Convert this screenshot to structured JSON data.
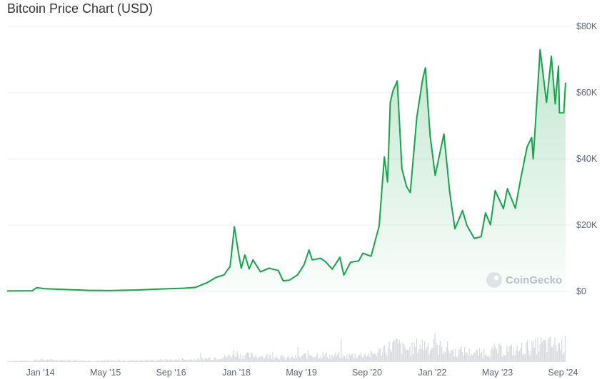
{
  "title": "Bitcoin Price Chart (USD)",
  "watermark": "CoinGecko",
  "colors": {
    "line": "#16a34a",
    "area_top": "#16a34a",
    "volume": "#d7dade",
    "grid": "#eceef1"
  },
  "chart_data": {
    "type": "area",
    "title": "Bitcoin Price Chart (USD)",
    "xlabel": "",
    "ylabel": "",
    "ylim": [
      0,
      80000
    ],
    "y_ticks": [
      {
        "value": 80000,
        "label": "$80K"
      },
      {
        "value": 60000,
        "label": "$60K"
      },
      {
        "value": 40000,
        "label": "$40K"
      },
      {
        "value": 20000,
        "label": "$20K"
      },
      {
        "value": 0,
        "label": "$0"
      }
    ],
    "x_ticks": [
      {
        "date": "2014-01-01",
        "label": "Jan '14"
      },
      {
        "date": "2015-05-01",
        "label": "May '15"
      },
      {
        "date": "2016-09-01",
        "label": "Sep '16"
      },
      {
        "date": "2018-01-01",
        "label": "Jan '18"
      },
      {
        "date": "2019-05-01",
        "label": "May '19"
      },
      {
        "date": "2020-09-01",
        "label": "Sep '20"
      },
      {
        "date": "2022-01-01",
        "label": "Jan '22"
      },
      {
        "date": "2023-05-01",
        "label": "May '23"
      },
      {
        "date": "2024-09-01",
        "label": "Sep '24"
      }
    ],
    "grid": true,
    "series": [
      {
        "x": [
          "2013-04-28",
          "2013-11-01",
          "2013-12-05",
          "2014-02-01",
          "2014-06-01",
          "2015-01-01",
          "2015-06-01",
          "2016-01-01",
          "2016-06-01",
          "2016-12-01",
          "2017-03-01",
          "2017-06-01",
          "2017-08-01",
          "2017-10-01",
          "2017-11-15",
          "2017-12-17",
          "2018-01-15",
          "2018-02-06",
          "2018-03-05",
          "2018-04-06",
          "2018-05-05",
          "2018-06-29",
          "2018-09-01",
          "2018-11-10",
          "2018-12-15",
          "2019-02-01",
          "2019-04-02",
          "2019-05-20",
          "2019-06-26",
          "2019-07-20",
          "2019-09-20",
          "2019-10-26",
          "2019-12-17",
          "2020-02-12",
          "2020-03-12",
          "2020-05-01",
          "2020-07-01",
          "2020-08-01",
          "2020-10-01",
          "2020-11-30",
          "2021-01-08",
          "2021-02-01",
          "2021-02-21",
          "2021-03-13",
          "2021-04-14",
          "2021-05-19",
          "2021-06-22",
          "2021-07-20",
          "2021-09-07",
          "2021-10-20",
          "2021-11-10",
          "2021-12-15",
          "2022-01-22",
          "2022-03-28",
          "2022-05-10",
          "2022-06-18",
          "2022-08-14",
          "2022-09-15",
          "2022-11-09",
          "2022-12-30",
          "2023-02-01",
          "2023-03-10",
          "2023-04-14",
          "2023-06-15",
          "2023-07-14",
          "2023-09-11",
          "2023-10-24",
          "2023-12-08",
          "2024-01-11",
          "2024-01-23",
          "2024-03-14",
          "2024-05-01",
          "2024-06-06",
          "2024-07-05",
          "2024-07-29",
          "2024-08-05",
          "2024-09-06",
          "2024-09-20"
        ],
        "y": [
          135,
          200,
          1150,
          800,
          620,
          300,
          230,
          430,
          700,
          950,
          1200,
          2700,
          4200,
          5000,
          7500,
          19500,
          12000,
          7000,
          11000,
          6800,
          9500,
          5900,
          7000,
          6300,
          3200,
          3400,
          5000,
          8000,
          12500,
          9500,
          10000,
          9000,
          6700,
          10300,
          4900,
          8800,
          9200,
          11500,
          10600,
          19700,
          40600,
          33000,
          57000,
          60500,
          63500,
          37000,
          31700,
          29800,
          52600,
          64000,
          67500,
          47000,
          35000,
          47500,
          30000,
          18900,
          24400,
          20000,
          16000,
          16500,
          23700,
          20100,
          30400,
          25000,
          31000,
          25100,
          34500,
          43600,
          46500,
          40000,
          73000,
          57000,
          71000,
          56600,
          68000,
          53900,
          53900,
          63000
        ]
      }
    ]
  }
}
